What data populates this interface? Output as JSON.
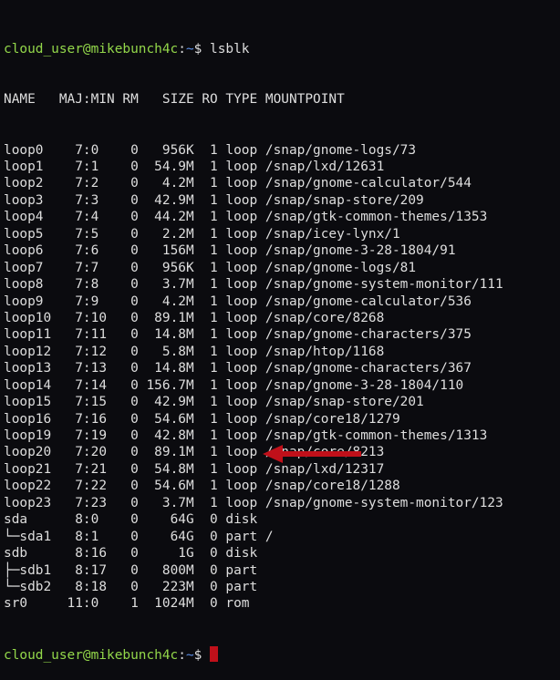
{
  "prompt": {
    "user_host": "cloud_user@mikebunch4c",
    "sep": ":",
    "cwd": "~",
    "symbol": "$ "
  },
  "command": "lsblk",
  "headers": [
    "NAME",
    "MAJ:MIN",
    "RM",
    "SIZE",
    "RO",
    "TYPE",
    "MOUNTPOINT"
  ],
  "rows": [
    [
      "loop0",
      "7:0",
      "0",
      "956K",
      "1",
      "loop",
      "/snap/gnome-logs/73"
    ],
    [
      "loop1",
      "7:1",
      "0",
      "54.9M",
      "1",
      "loop",
      "/snap/lxd/12631"
    ],
    [
      "loop2",
      "7:2",
      "0",
      "4.2M",
      "1",
      "loop",
      "/snap/gnome-calculator/544"
    ],
    [
      "loop3",
      "7:3",
      "0",
      "42.9M",
      "1",
      "loop",
      "/snap/snap-store/209"
    ],
    [
      "loop4",
      "7:4",
      "0",
      "44.2M",
      "1",
      "loop",
      "/snap/gtk-common-themes/1353"
    ],
    [
      "loop5",
      "7:5",
      "0",
      "2.2M",
      "1",
      "loop",
      "/snap/icey-lynx/1"
    ],
    [
      "loop6",
      "7:6",
      "0",
      "156M",
      "1",
      "loop",
      "/snap/gnome-3-28-1804/91"
    ],
    [
      "loop7",
      "7:7",
      "0",
      "956K",
      "1",
      "loop",
      "/snap/gnome-logs/81"
    ],
    [
      "loop8",
      "7:8",
      "0",
      "3.7M",
      "1",
      "loop",
      "/snap/gnome-system-monitor/111"
    ],
    [
      "loop9",
      "7:9",
      "0",
      "4.2M",
      "1",
      "loop",
      "/snap/gnome-calculator/536"
    ],
    [
      "loop10",
      "7:10",
      "0",
      "89.1M",
      "1",
      "loop",
      "/snap/core/8268"
    ],
    [
      "loop11",
      "7:11",
      "0",
      "14.8M",
      "1",
      "loop",
      "/snap/gnome-characters/375"
    ],
    [
      "loop12",
      "7:12",
      "0",
      "5.8M",
      "1",
      "loop",
      "/snap/htop/1168"
    ],
    [
      "loop13",
      "7:13",
      "0",
      "14.8M",
      "1",
      "loop",
      "/snap/gnome-characters/367"
    ],
    [
      "loop14",
      "7:14",
      "0",
      "156.7M",
      "1",
      "loop",
      "/snap/gnome-3-28-1804/110"
    ],
    [
      "loop15",
      "7:15",
      "0",
      "42.9M",
      "1",
      "loop",
      "/snap/snap-store/201"
    ],
    [
      "loop16",
      "7:16",
      "0",
      "54.6M",
      "1",
      "loop",
      "/snap/core18/1279"
    ],
    [
      "loop19",
      "7:19",
      "0",
      "42.8M",
      "1",
      "loop",
      "/snap/gtk-common-themes/1313"
    ],
    [
      "loop20",
      "7:20",
      "0",
      "89.1M",
      "1",
      "loop",
      "/snap/core/8213"
    ],
    [
      "loop21",
      "7:21",
      "0",
      "54.8M",
      "1",
      "loop",
      "/snap/lxd/12317"
    ],
    [
      "loop22",
      "7:22",
      "0",
      "54.6M",
      "1",
      "loop",
      "/snap/core18/1288"
    ],
    [
      "loop23",
      "7:23",
      "0",
      "3.7M",
      "1",
      "loop",
      "/snap/gnome-system-monitor/123"
    ],
    [
      "sda",
      "8:0",
      "0",
      "64G",
      "0",
      "disk",
      ""
    ],
    [
      "└─sda1",
      "8:1",
      "0",
      "64G",
      "0",
      "part",
      "/"
    ],
    [
      "sdb",
      "8:16",
      "0",
      "1G",
      "0",
      "disk",
      ""
    ],
    [
      "├─sdb1",
      "8:17",
      "0",
      "800M",
      "0",
      "part",
      ""
    ],
    [
      "└─sdb2",
      "8:18",
      "0",
      "223M",
      "0",
      "part",
      ""
    ],
    [
      "sr0",
      "11:0",
      "1",
      "1024M",
      "0",
      "rom",
      ""
    ]
  ],
  "annotation": {
    "arrow_color": "#c0101a",
    "points_to": "sdb"
  },
  "colors": {
    "prompt_user": "#93d74a",
    "prompt_path": "#5b8ee6",
    "text": "#dedede",
    "background": "#0b0b0f",
    "cursor": "#c0101a"
  }
}
